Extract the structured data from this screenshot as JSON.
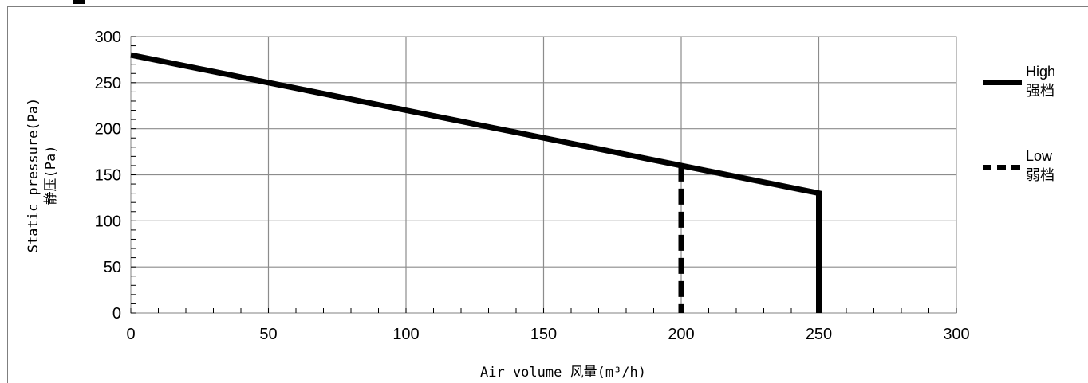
{
  "chart_data": {
    "type": "line",
    "title": "",
    "xlabel": "Air volume  风量(m³/h)",
    "ylabel_line1": "Static pressure(Pa)",
    "ylabel_line2": "静压(Pa)",
    "xlim": [
      0,
      300
    ],
    "ylim": [
      0,
      300
    ],
    "x_ticks": [
      0,
      50,
      100,
      150,
      200,
      250,
      300
    ],
    "y_ticks": [
      0,
      50,
      100,
      150,
      200,
      250,
      300
    ],
    "grid": true,
    "legend_position": "right",
    "series": [
      {
        "name": "High",
        "name_cn": "强档",
        "style": "solid",
        "color": "#000000",
        "points": [
          [
            0,
            280
          ],
          [
            50,
            250
          ],
          [
            100,
            220
          ],
          [
            150,
            190
          ],
          [
            200,
            160
          ],
          [
            250,
            130
          ],
          [
            250,
            0
          ]
        ]
      },
      {
        "name": "Low",
        "name_cn": "弱档",
        "style": "dashed",
        "color": "#000000",
        "points": [
          [
            200,
            160
          ],
          [
            200,
            0
          ]
        ]
      }
    ]
  }
}
